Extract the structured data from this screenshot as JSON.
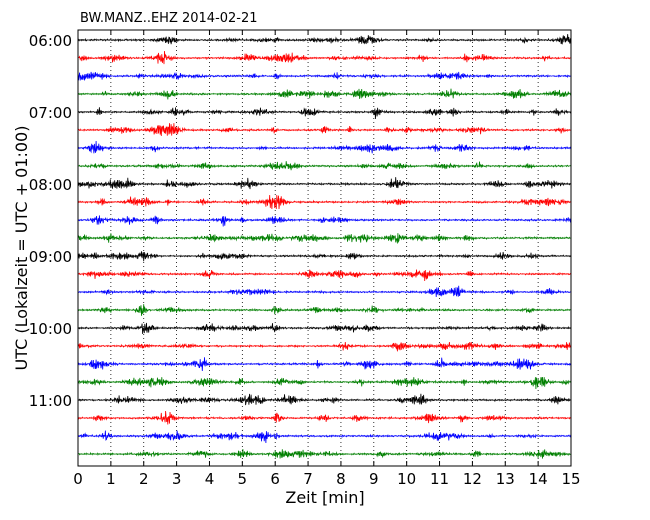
{
  "chart_data": {
    "type": "line",
    "title": "BW.MANZ..EHZ 2014-02-21",
    "xlabel": "Zeit  [min]",
    "ylabel": "UTC (Lokalzeit = UTC + 01:00)",
    "xlim": [
      0,
      15
    ],
    "x_ticks": [
      "0",
      "1",
      "2",
      "3",
      "4",
      "5",
      "6",
      "7",
      "8",
      "9",
      "10",
      "11",
      "12",
      "13",
      "14",
      "15"
    ],
    "y_ticks": [
      "06:00",
      "07:00",
      "08:00",
      "09:00",
      "10:00",
      "11:00"
    ],
    "grid": "vertical dotted at each minute",
    "rows_per_hour": 4,
    "row_minutes": 15,
    "first_row_start": "06:00",
    "row_start_times": [
      "06:00",
      "06:15",
      "06:30",
      "06:45",
      "07:00",
      "07:15",
      "07:30",
      "07:45",
      "08:00",
      "08:15",
      "08:30",
      "08:45",
      "09:00",
      "09:15",
      "09:30",
      "09:45",
      "10:00",
      "10:15",
      "10:30",
      "10:45",
      "11:00",
      "11:15",
      "11:30",
      "11:45"
    ],
    "trace_colors": [
      "#000000",
      "#ff0000",
      "#0000ff",
      "#007f00"
    ]
  }
}
